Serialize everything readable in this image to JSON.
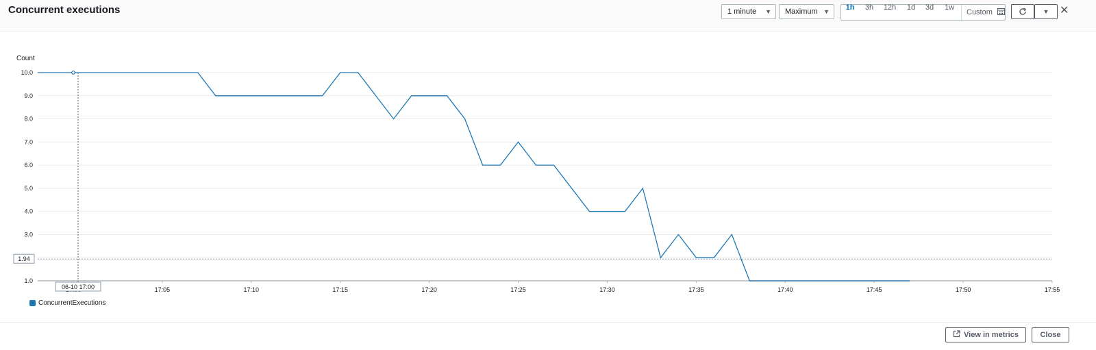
{
  "header": {
    "title": "Concurrent executions",
    "period_select": "1 minute",
    "statistic_select": "Maximum",
    "ranges": [
      "1h",
      "3h",
      "12h",
      "1d",
      "3d",
      "1w"
    ],
    "active_range": "1h",
    "custom_label": "Custom"
  },
  "icons": {
    "calendar": "calendar-icon",
    "refresh": "refresh-icon",
    "dropdown": "caret-down-icon",
    "close": "close-icon",
    "external": "external-link-icon"
  },
  "colors": {
    "series": "#1f77b4",
    "active_range": "#0073bb",
    "grid": "#e9ebed"
  },
  "chart_data": {
    "type": "line",
    "ylabel": "Count",
    "yticks": [
      "1.0",
      "2.0",
      "3.0",
      "4.0",
      "5.0",
      "6.0",
      "7.0",
      "8.0",
      "9.0",
      "10.0"
    ],
    "ylim": [
      1,
      10
    ],
    "xticks": [
      "17:00",
      "17:05",
      "17:10",
      "17:15",
      "17:20",
      "17:25",
      "17:30",
      "17:35",
      "17:40",
      "17:45",
      "17:50",
      "17:55"
    ],
    "xlim": [
      "16:58",
      "17:55"
    ],
    "grid": true,
    "legend_position": "bottom-left",
    "series": [
      {
        "name": "ConcurrentExecutions",
        "x": [
          "16:58",
          "17:00",
          "17:07",
          "17:08",
          "17:14",
          "17:15",
          "17:16",
          "17:18",
          "17:19",
          "17:21",
          "17:22",
          "17:23",
          "17:24",
          "17:25",
          "17:26",
          "17:27",
          "17:29",
          "17:31",
          "17:32",
          "17:33",
          "17:34",
          "17:35",
          "17:36",
          "17:37",
          "17:38",
          "17:47"
        ],
        "values": [
          10,
          10,
          10,
          9,
          9,
          10,
          10,
          8,
          9,
          9,
          8,
          6,
          6,
          7,
          6,
          6,
          4,
          4,
          5,
          2,
          3,
          2,
          2,
          3,
          1,
          1
        ]
      }
    ],
    "crosshair": {
      "x_label": "06-10 17:00",
      "y_label": "1.94",
      "x": "17:00",
      "y": 1.94
    }
  },
  "footer": {
    "view_in_metrics": "View in metrics",
    "close": "Close"
  }
}
